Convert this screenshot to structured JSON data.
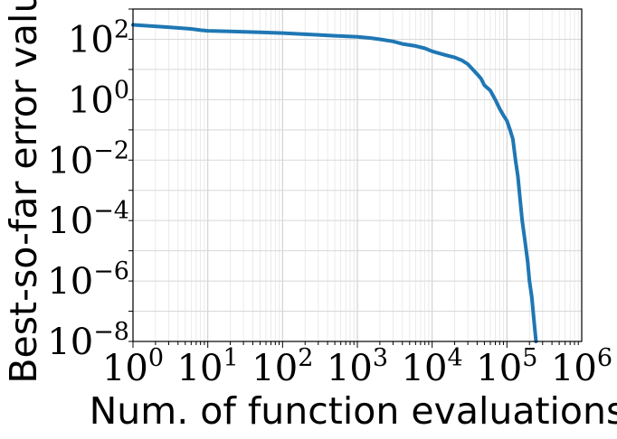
{
  "chart_data": {
    "type": "line",
    "title": "",
    "xlabel": "Num. of function evaluations",
    "ylabel": "Best-so-far error value",
    "xscale": "log",
    "yscale": "log",
    "xlim": [
      1,
      1000000
    ],
    "ylim": [
      1e-08,
      1000
    ],
    "grid": true,
    "x_ticks": [
      {
        "base": "10",
        "exp": "0"
      },
      {
        "base": "10",
        "exp": "1"
      },
      {
        "base": "10",
        "exp": "2"
      },
      {
        "base": "10",
        "exp": "3"
      },
      {
        "base": "10",
        "exp": "4"
      },
      {
        "base": "10",
        "exp": "5"
      },
      {
        "base": "10",
        "exp": "6"
      }
    ],
    "y_ticks": [
      {
        "base": "10",
        "exp": "−8"
      },
      {
        "base": "10",
        "exp": "−6"
      },
      {
        "base": "10",
        "exp": "−4"
      },
      {
        "base": "10",
        "exp": "−2"
      },
      {
        "base": "10",
        "exp": "0"
      },
      {
        "base": "10",
        "exp": "2"
      }
    ],
    "series": [
      {
        "color": "#1f77b4",
        "points": [
          [
            1,
            300
          ],
          [
            3,
            250
          ],
          [
            6,
            220
          ],
          [
            8,
            200
          ],
          [
            10,
            190
          ],
          [
            50,
            170
          ],
          [
            100,
            160
          ],
          [
            300,
            140
          ],
          [
            500,
            130
          ],
          [
            1000,
            120
          ],
          [
            1500,
            110
          ],
          [
            2000,
            100
          ],
          [
            3000,
            85
          ],
          [
            4000,
            70
          ],
          [
            6000,
            60
          ],
          [
            8000,
            50
          ],
          [
            10000,
            40
          ],
          [
            15000,
            30
          ],
          [
            20000,
            25
          ],
          [
            25000,
            20
          ],
          [
            30000,
            15
          ],
          [
            35000,
            10
          ],
          [
            40000,
            7
          ],
          [
            45000,
            5
          ],
          [
            50000,
            3
          ],
          [
            60000,
            2
          ],
          [
            70000,
            1
          ],
          [
            80000,
            0.5
          ],
          [
            90000,
            0.3
          ],
          [
            100000,
            0.2
          ],
          [
            110000,
            0.1
          ],
          [
            120000,
            0.05
          ],
          [
            130000,
            0.01
          ],
          [
            140000,
            0.003
          ],
          [
            150000,
            0.0005
          ],
          [
            160000,
            0.0001
          ],
          [
            175000,
            2e-05
          ],
          [
            190000,
            4e-06
          ],
          [
            200000,
            1e-06
          ],
          [
            215000,
            3e-07
          ],
          [
            230000,
            5e-08
          ],
          [
            245000,
            1e-08
          ]
        ]
      }
    ]
  }
}
